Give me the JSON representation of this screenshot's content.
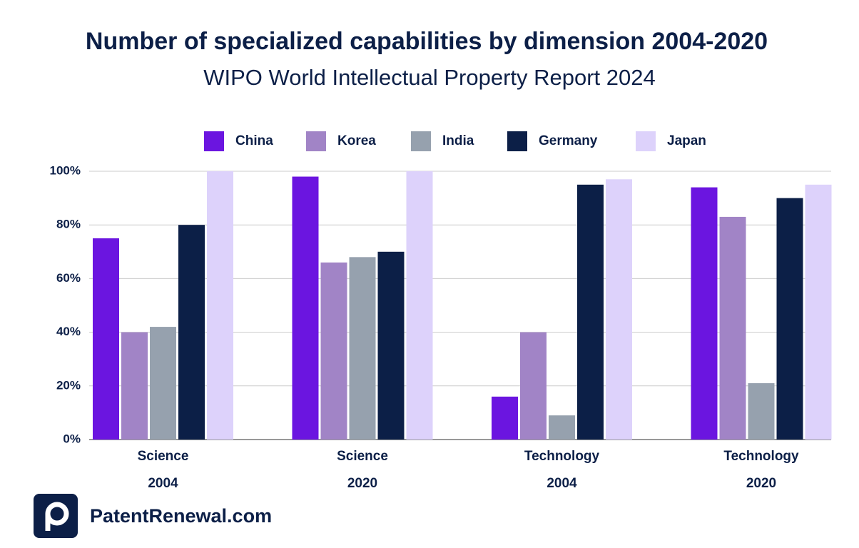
{
  "chart_data": {
    "type": "bar",
    "title": "Number of specialized capabilities by dimension 2004-2020",
    "subtitle": "WIPO World Intellectual Property Report 2024",
    "brand": "PatentRenewal.com",
    "categories": [
      [
        "Science",
        "2004"
      ],
      [
        "Science",
        "2020"
      ],
      [
        "Technology",
        "2004"
      ],
      [
        "Technology",
        "2020"
      ]
    ],
    "series": [
      {
        "name": "China",
        "color": "#6b15e0",
        "values": [
          75,
          98,
          16,
          94
        ]
      },
      {
        "name": "Korea",
        "color": "#a184c6",
        "values": [
          40,
          66,
          40,
          83
        ]
      },
      {
        "name": "India",
        "color": "#96a1ae",
        "values": [
          42,
          68,
          9,
          21
        ]
      },
      {
        "name": "Germany",
        "color": "#0c1f47",
        "values": [
          80,
          70,
          95,
          90
        ]
      },
      {
        "name": "Japan",
        "color": "#ddd2fb",
        "values": [
          100,
          100,
          97,
          95
        ]
      }
    ],
    "ylim": [
      0,
      100
    ],
    "yticks": [
      {
        "value": 0,
        "label": "0%"
      },
      {
        "value": 20,
        "label": "20%"
      },
      {
        "value": 40,
        "label": "40%"
      },
      {
        "value": 60,
        "label": "60%"
      },
      {
        "value": 80,
        "label": "80%"
      },
      {
        "value": 100,
        "label": "100%"
      }
    ],
    "grid": true,
    "legend": "top"
  }
}
